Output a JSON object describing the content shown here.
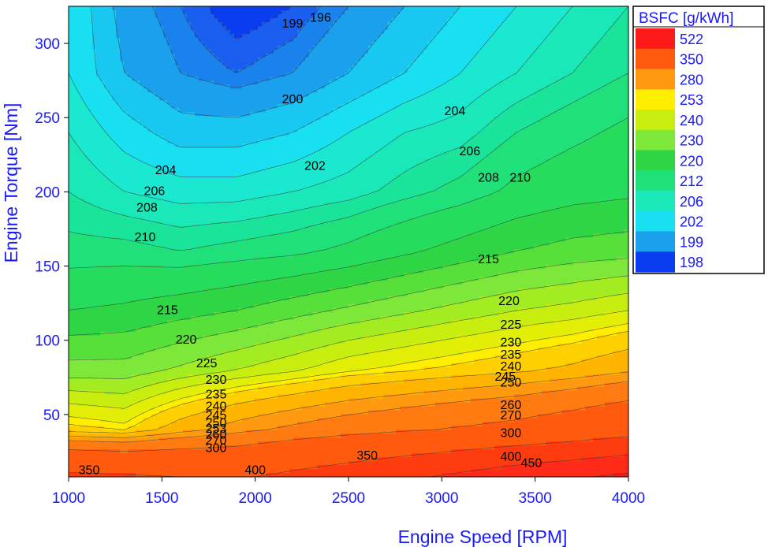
{
  "chart_data": {
    "type": "heatmap",
    "title": "",
    "xlabel": "Engine Speed [RPM]",
    "ylabel": "Engine Torque [Nm]",
    "xlim": [
      1000,
      4000
    ],
    "ylim": [
      8,
      325
    ],
    "x_ticks": [
      "1000",
      "1500",
      "2000",
      "2500",
      "3000",
      "3500",
      "4000"
    ],
    "y_ticks": [
      "50",
      "100",
      "150",
      "200",
      "250",
      "300"
    ],
    "legend": {
      "title": "BSFC [g/kWh]",
      "placement": "right",
      "entries": [
        {
          "label": "522",
          "color": "#ff1a1a"
        },
        {
          "label": "350",
          "color": "#ff5a0e"
        },
        {
          "label": "280",
          "color": "#ff9a10"
        },
        {
          "label": "253",
          "color": "#ffee00"
        },
        {
          "label": "240",
          "color": "#c8ee10"
        },
        {
          "label": "230",
          "color": "#7ee83a"
        },
        {
          "label": "220",
          "color": "#2ed646"
        },
        {
          "label": "212",
          "color": "#20e07a"
        },
        {
          "label": "206",
          "color": "#1ae8b8"
        },
        {
          "label": "202",
          "color": "#18e0f0"
        },
        {
          "label": "199",
          "color": "#1aa0ec"
        },
        {
          "label": "198",
          "color": "#0a3cf0"
        }
      ]
    },
    "levels": [
      196,
      198,
      199,
      200,
      202,
      204,
      206,
      208,
      210,
      212,
      215,
      220,
      225,
      230,
      235,
      240,
      245,
      250,
      253,
      260,
      270,
      280,
      300,
      350,
      400,
      450,
      522
    ],
    "level_colors": [
      "#0a3cf0",
      "#1a5ef0",
      "#1a82ec",
      "#1aa0ec",
      "#18c8f0",
      "#18e0f0",
      "#1ae8d0",
      "#1ae8b8",
      "#1ae49a",
      "#20e07a",
      "#26dc5c",
      "#2ed646",
      "#58e03a",
      "#7ee83a",
      "#a4ec22",
      "#c8ee10",
      "#e2ee06",
      "#ffee00",
      "#ffd000",
      "#ffb400",
      "#ff9a10",
      "#ff7a10",
      "#ff5a0e",
      "#ff3c10",
      "#ff2a18",
      "#ff1a1a"
    ],
    "grid": [
      [
        360,
        355,
        350,
        345,
        360,
        375,
        392,
        410,
        430,
        445,
        460
      ],
      [
        255,
        252,
        265,
        275,
        283,
        290,
        296,
        302,
        308,
        318,
        330
      ],
      [
        232,
        232,
        236,
        240,
        244,
        249,
        252,
        255,
        258,
        262,
        268
      ],
      [
        220,
        221,
        223,
        225,
        228,
        231,
        234,
        237,
        240,
        242,
        245
      ],
      [
        213,
        213,
        212,
        213,
        214,
        216,
        219,
        222,
        225,
        227,
        228
      ],
      [
        210,
        208,
        207,
        207,
        208,
        209,
        211,
        213,
        216,
        218,
        219
      ],
      [
        208,
        205,
        203,
        203,
        204,
        206,
        208,
        209,
        212,
        214,
        216
      ],
      [
        206,
        202,
        200,
        199,
        200,
        202,
        204,
        206,
        208,
        210,
        212
      ],
      [
        206,
        201,
        199,
        197,
        198,
        200,
        202,
        204,
        206,
        208,
        210
      ]
    ],
    "grid_x": [
      1000,
      1300,
      1600,
      1900,
      2200,
      2500,
      2800,
      3100,
      3400,
      3700,
      4000
    ],
    "grid_y": [
      8,
      40,
      80,
      120,
      160,
      200,
      240,
      280,
      325
    ],
    "contour_labels": [
      {
        "text": "196",
        "x": 2350,
        "y": 317
      },
      {
        "text": "199",
        "x": 2200,
        "y": 313
      },
      {
        "text": "200",
        "x": 2200,
        "y": 262
      },
      {
        "text": "202",
        "x": 2320,
        "y": 217
      },
      {
        "text": "204",
        "x": 1520,
        "y": 214
      },
      {
        "text": "206",
        "x": 1460,
        "y": 200
      },
      {
        "text": "208",
        "x": 1420,
        "y": 189
      },
      {
        "text": "210",
        "x": 1410,
        "y": 169
      },
      {
        "text": "204",
        "x": 3070,
        "y": 254
      },
      {
        "text": "206",
        "x": 3150,
        "y": 227
      },
      {
        "text": "208",
        "x": 3250,
        "y": 209
      },
      {
        "text": "210",
        "x": 3420,
        "y": 209
      },
      {
        "text": "215",
        "x": 1530,
        "y": 120
      },
      {
        "text": "220",
        "x": 1630,
        "y": 100
      },
      {
        "text": "225",
        "x": 1740,
        "y": 84
      },
      {
        "text": "230",
        "x": 1790,
        "y": 73
      },
      {
        "text": "235",
        "x": 1790,
        "y": 63
      },
      {
        "text": "240",
        "x": 1790,
        "y": 55
      },
      {
        "text": "245",
        "x": 1790,
        "y": 49
      },
      {
        "text": "250",
        "x": 1790,
        "y": 44
      },
      {
        "text": "253",
        "x": 1790,
        "y": 40
      },
      {
        "text": "260",
        "x": 1790,
        "y": 36
      },
      {
        "text": "270",
        "x": 1790,
        "y": 32
      },
      {
        "text": "300",
        "x": 1790,
        "y": 27
      },
      {
        "text": "215",
        "x": 3250,
        "y": 154
      },
      {
        "text": "220",
        "x": 3360,
        "y": 126
      },
      {
        "text": "225",
        "x": 3370,
        "y": 110
      },
      {
        "text": "230",
        "x": 3370,
        "y": 98
      },
      {
        "text": "235",
        "x": 3370,
        "y": 90
      },
      {
        "text": "240",
        "x": 3370,
        "y": 82
      },
      {
        "text": "245",
        "x": 3340,
        "y": 75
      },
      {
        "text": "250",
        "x": 3370,
        "y": 71
      },
      {
        "text": "260",
        "x": 3370,
        "y": 56
      },
      {
        "text": "270",
        "x": 3370,
        "y": 49
      },
      {
        "text": "300",
        "x": 3370,
        "y": 37
      },
      {
        "text": "400",
        "x": 3370,
        "y": 21
      },
      {
        "text": "450",
        "x": 3480,
        "y": 17
      },
      {
        "text": "350",
        "x": 2600,
        "y": 22
      },
      {
        "text": "400",
        "x": 2000,
        "y": 12
      },
      {
        "text": "350",
        "x": 1110,
        "y": 12
      }
    ]
  }
}
